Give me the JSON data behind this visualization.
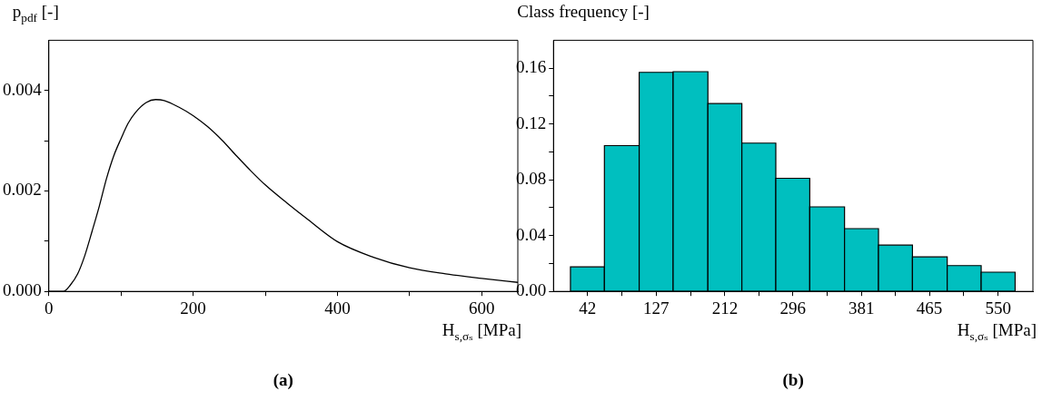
{
  "chart_data": [
    {
      "type": "line",
      "title": "(a)",
      "ylabel": "p$_{pdf}$ [-]",
      "xlabel": "H$_{s,σₛ}$ [MPa]",
      "color": "#000000",
      "x": [
        0,
        10,
        20,
        30,
        40,
        50,
        60,
        70,
        80,
        90,
        100,
        110,
        120,
        135,
        148,
        160,
        180,
        200,
        220,
        240,
        260,
        280,
        300,
        330,
        360,
        400,
        450,
        500,
        550,
        600,
        650
      ],
      "values": [
        0,
        0,
        0,
        0.00013,
        0.00035,
        0.00072,
        0.0012,
        0.0017,
        0.00225,
        0.0027,
        0.00304,
        0.00335,
        0.00356,
        0.00376,
        0.00382,
        0.0038,
        0.00367,
        0.0035,
        0.00328,
        0.00301,
        0.0027,
        0.0024,
        0.00212,
        0.00176,
        0.00142,
        0.00099,
        0.00068,
        0.00047,
        0.00035,
        0.00026,
        0.00018
      ],
      "xlim": [
        0,
        650
      ],
      "ylim": [
        0,
        0.005
      ],
      "xticks": [
        0,
        {
          "value": 100,
          "label": null
        },
        200,
        {
          "value": 300,
          "label": null
        },
        400,
        {
          "value": 500,
          "label": null
        },
        600
      ],
      "yticks": [
        {
          "value": 0,
          "label": "0.000"
        },
        {
          "value": 0.001,
          "label": null
        },
        {
          "value": 0.002,
          "label": "0.002"
        },
        {
          "value": 0.003,
          "label": null
        },
        {
          "value": 0.004,
          "label": "0.004"
        }
      ]
    },
    {
      "type": "histogram",
      "title": "(b)",
      "ylabel": "Class frequency [-]",
      "xlabel": "H$_{s,σₛ}$ [MPa]",
      "color": "#00bfbf",
      "bins": [
        21,
        63,
        106,
        148,
        191,
        233,
        275,
        317,
        360,
        402,
        444,
        487,
        529,
        571
      ],
      "values": [
        0.0176,
        0.1045,
        0.157,
        0.1575,
        0.1346,
        0.1063,
        0.0811,
        0.0606,
        0.045,
        0.0332,
        0.0247,
        0.0185,
        0.0138
      ],
      "xlim": [
        0,
        593
      ],
      "ylim": [
        0,
        0.18
      ],
      "xticks": [
        42,
        {
          "value": 84.5,
          "label": null
        },
        127,
        {
          "value": 169.5,
          "label": null
        },
        212,
        {
          "value": 254,
          "label": null
        },
        296,
        {
          "value": 338.5,
          "label": null
        },
        381,
        {
          "value": 423,
          "label": null
        },
        465,
        {
          "value": 507.5,
          "label": null
        },
        550
      ],
      "yticks": [
        {
          "value": 0,
          "label": "0.00"
        },
        {
          "value": 0.02,
          "label": null
        },
        {
          "value": 0.04,
          "label": "0.04"
        },
        {
          "value": 0.06,
          "label": null
        },
        {
          "value": 0.08,
          "label": "0.08"
        },
        {
          "value": 0.1,
          "label": null
        },
        {
          "value": 0.12,
          "label": "0.12"
        },
        {
          "value": 0.14,
          "label": null
        },
        {
          "value": 0.16,
          "label": "0.16"
        }
      ]
    }
  ]
}
